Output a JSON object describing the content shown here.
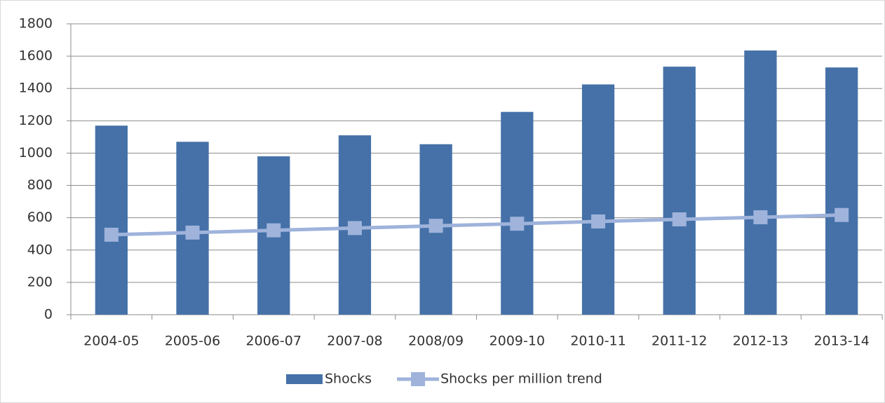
{
  "chart_data": {
    "type": "bar",
    "categories": [
      "2004-05",
      "2005-06",
      "2006-07",
      "2007-08",
      "2008/09",
      "2009-10",
      "2010-11",
      "2011-12",
      "2012-13",
      "2013-14"
    ],
    "series": [
      {
        "name": "Shocks",
        "type": "bar",
        "color": "#4571a8",
        "values": [
          1170,
          1070,
          980,
          1110,
          1055,
          1255,
          1425,
          1535,
          1635,
          1530
        ]
      },
      {
        "name": "Shocks per million trend",
        "type": "line",
        "color": "#9fb3db",
        "values": [
          495,
          508,
          522,
          536,
          550,
          563,
          577,
          590,
          603,
          617
        ]
      }
    ],
    "ylim": [
      0,
      1800
    ],
    "yticks": [
      0,
      200,
      400,
      600,
      800,
      1000,
      1200,
      1400,
      1600,
      1800
    ],
    "grid": true,
    "legend": "bottom"
  }
}
